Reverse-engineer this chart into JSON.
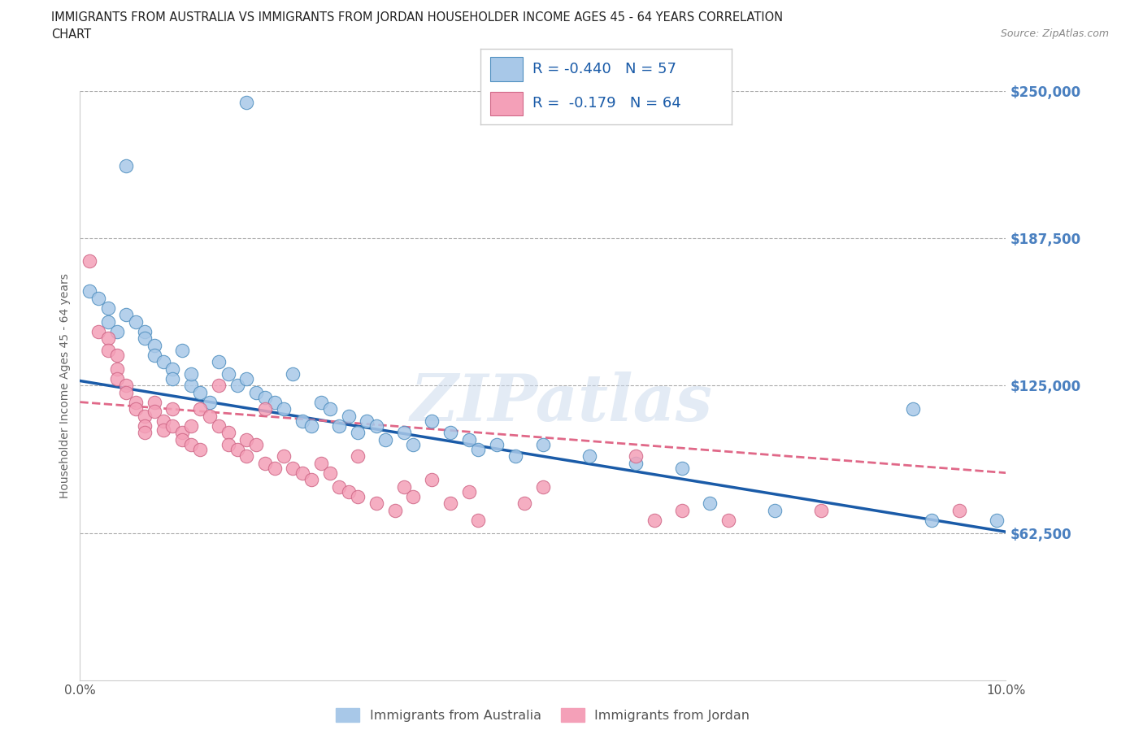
{
  "title_line1": "IMMIGRANTS FROM AUSTRALIA VS IMMIGRANTS FROM JORDAN HOUSEHOLDER INCOME AGES 45 - 64 YEARS CORRELATION",
  "title_line2": "CHART",
  "source_text": "Source: ZipAtlas.com",
  "ylabel": "Householder Income Ages 45 - 64 years",
  "xlim": [
    0.0,
    0.1
  ],
  "ylim": [
    0,
    250000
  ],
  "yticks": [
    62500,
    125000,
    187500,
    250000
  ],
  "ytick_labels": [
    "$62,500",
    "$125,000",
    "$187,500",
    "$250,000"
  ],
  "xticks": [
    0.0,
    0.02,
    0.04,
    0.06,
    0.08,
    0.1
  ],
  "xtick_labels": [
    "0.0%",
    "",
    "",
    "",
    "",
    "10.0%"
  ],
  "australia_color": "#a8c8e8",
  "australia_edge": "#5090c0",
  "jordan_color": "#f4a0b8",
  "jordan_edge": "#d06888",
  "trendline_australia_color": "#1a5ba8",
  "trendline_jordan_color": "#e06888",
  "R_australia": -0.44,
  "N_australia": 57,
  "R_jordan": -0.179,
  "N_jordan": 64,
  "legend_label_australia": "Immigrants from Australia",
  "legend_label_jordan": "Immigrants from Jordan",
  "watermark_text": "ZIPatlas",
  "background_color": "#ffffff",
  "title_color": "#222222",
  "ytick_color": "#4a80c0",
  "source_color": "#888888",
  "trendline_aus_x0": 0.0,
  "trendline_aus_y0": 127000,
  "trendline_aus_x1": 0.1,
  "trendline_aus_y1": 63000,
  "trendline_jor_x0": 0.0,
  "trendline_jor_y0": 118000,
  "trendline_jor_x1": 0.1,
  "trendline_jor_y1": 88000,
  "australia_scatter": [
    [
      0.005,
      218000
    ],
    [
      0.018,
      245000
    ],
    [
      0.001,
      165000
    ],
    [
      0.002,
      162000
    ],
    [
      0.003,
      158000
    ],
    [
      0.003,
      152000
    ],
    [
      0.004,
      148000
    ],
    [
      0.005,
      155000
    ],
    [
      0.006,
      152000
    ],
    [
      0.007,
      148000
    ],
    [
      0.007,
      145000
    ],
    [
      0.008,
      142000
    ],
    [
      0.008,
      138000
    ],
    [
      0.009,
      135000
    ],
    [
      0.01,
      132000
    ],
    [
      0.01,
      128000
    ],
    [
      0.011,
      140000
    ],
    [
      0.012,
      125000
    ],
    [
      0.012,
      130000
    ],
    [
      0.013,
      122000
    ],
    [
      0.014,
      118000
    ],
    [
      0.015,
      135000
    ],
    [
      0.016,
      130000
    ],
    [
      0.017,
      125000
    ],
    [
      0.018,
      128000
    ],
    [
      0.019,
      122000
    ],
    [
      0.02,
      120000
    ],
    [
      0.021,
      118000
    ],
    [
      0.022,
      115000
    ],
    [
      0.023,
      130000
    ],
    [
      0.024,
      110000
    ],
    [
      0.025,
      108000
    ],
    [
      0.026,
      118000
    ],
    [
      0.027,
      115000
    ],
    [
      0.028,
      108000
    ],
    [
      0.029,
      112000
    ],
    [
      0.03,
      105000
    ],
    [
      0.031,
      110000
    ],
    [
      0.032,
      108000
    ],
    [
      0.033,
      102000
    ],
    [
      0.035,
      105000
    ],
    [
      0.036,
      100000
    ],
    [
      0.038,
      110000
    ],
    [
      0.04,
      105000
    ],
    [
      0.042,
      102000
    ],
    [
      0.043,
      98000
    ],
    [
      0.045,
      100000
    ],
    [
      0.047,
      95000
    ],
    [
      0.05,
      100000
    ],
    [
      0.055,
      95000
    ],
    [
      0.06,
      92000
    ],
    [
      0.065,
      90000
    ],
    [
      0.068,
      75000
    ],
    [
      0.075,
      72000
    ],
    [
      0.09,
      115000
    ],
    [
      0.092,
      68000
    ],
    [
      0.099,
      68000
    ]
  ],
  "jordan_scatter": [
    [
      0.001,
      178000
    ],
    [
      0.002,
      148000
    ],
    [
      0.003,
      145000
    ],
    [
      0.003,
      140000
    ],
    [
      0.004,
      138000
    ],
    [
      0.004,
      132000
    ],
    [
      0.004,
      128000
    ],
    [
      0.005,
      125000
    ],
    [
      0.005,
      122000
    ],
    [
      0.006,
      118000
    ],
    [
      0.006,
      115000
    ],
    [
      0.007,
      112000
    ],
    [
      0.007,
      108000
    ],
    [
      0.007,
      105000
    ],
    [
      0.008,
      118000
    ],
    [
      0.008,
      114000
    ],
    [
      0.009,
      110000
    ],
    [
      0.009,
      106000
    ],
    [
      0.01,
      115000
    ],
    [
      0.01,
      108000
    ],
    [
      0.011,
      105000
    ],
    [
      0.011,
      102000
    ],
    [
      0.012,
      108000
    ],
    [
      0.012,
      100000
    ],
    [
      0.013,
      98000
    ],
    [
      0.013,
      115000
    ],
    [
      0.014,
      112000
    ],
    [
      0.015,
      125000
    ],
    [
      0.015,
      108000
    ],
    [
      0.016,
      105000
    ],
    [
      0.016,
      100000
    ],
    [
      0.017,
      98000
    ],
    [
      0.018,
      102000
    ],
    [
      0.018,
      95000
    ],
    [
      0.019,
      100000
    ],
    [
      0.02,
      115000
    ],
    [
      0.02,
      92000
    ],
    [
      0.021,
      90000
    ],
    [
      0.022,
      95000
    ],
    [
      0.023,
      90000
    ],
    [
      0.024,
      88000
    ],
    [
      0.025,
      85000
    ],
    [
      0.026,
      92000
    ],
    [
      0.027,
      88000
    ],
    [
      0.028,
      82000
    ],
    [
      0.029,
      80000
    ],
    [
      0.03,
      78000
    ],
    [
      0.03,
      95000
    ],
    [
      0.032,
      75000
    ],
    [
      0.034,
      72000
    ],
    [
      0.035,
      82000
    ],
    [
      0.036,
      78000
    ],
    [
      0.038,
      85000
    ],
    [
      0.04,
      75000
    ],
    [
      0.042,
      80000
    ],
    [
      0.043,
      68000
    ],
    [
      0.048,
      75000
    ],
    [
      0.05,
      82000
    ],
    [
      0.06,
      95000
    ],
    [
      0.062,
      68000
    ],
    [
      0.065,
      72000
    ],
    [
      0.07,
      68000
    ],
    [
      0.08,
      72000
    ],
    [
      0.095,
      72000
    ]
  ]
}
